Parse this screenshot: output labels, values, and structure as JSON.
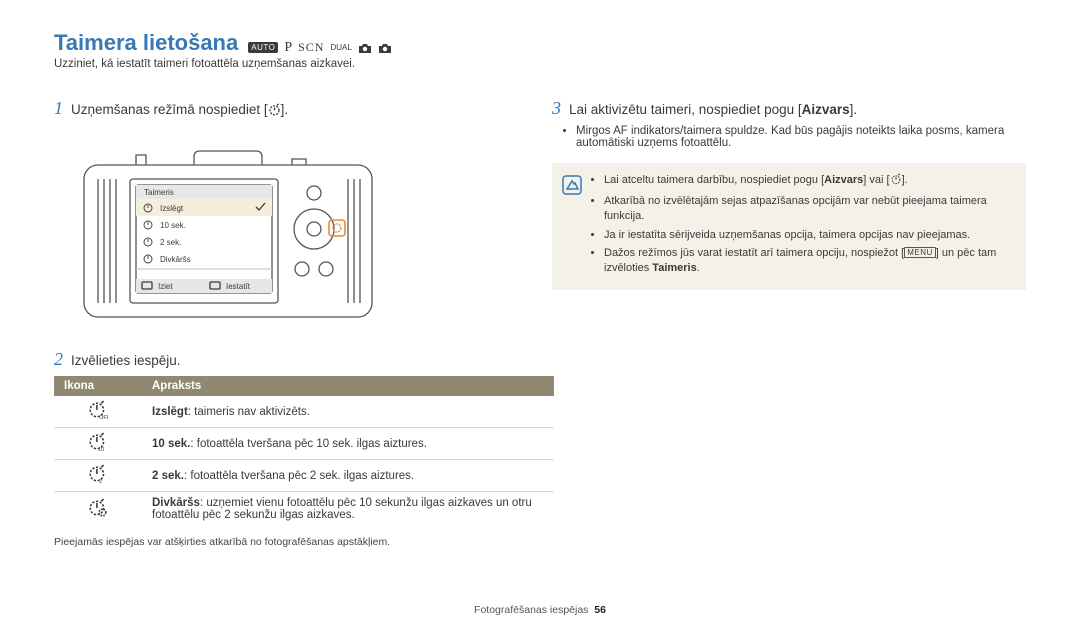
{
  "title": "Taimera lietošana",
  "title_color": "#3878b5",
  "modes": {
    "auto": "AUTO",
    "p": "P",
    "scn": "SCN",
    "dual": "DUAL"
  },
  "intro": "Uzziniet, kā iestatīt taimeri fotoattēla uzņemšanas aizkavei.",
  "step1": {
    "num": "1",
    "text_before": "Uzņemšanas režīmā nospiediet [",
    "text_after": "]."
  },
  "camera": {
    "menu_title": "Taimeris",
    "items": [
      {
        "icon": "off",
        "label": "Izslēgt",
        "checked": true
      },
      {
        "icon": "10",
        "label": "10 sek."
      },
      {
        "icon": "2",
        "label": "2 sek."
      },
      {
        "icon": "dbl",
        "label": "Divkāršs"
      }
    ],
    "exit": "Iziet",
    "set": "Iestatīt",
    "outline_color": "#555555",
    "screen_bg": "#ffffff",
    "body_bg": "#ffffff",
    "highlight_orange": "#e98a2e"
  },
  "step2": {
    "num": "2",
    "text": "Izvēlieties iespēju."
  },
  "table": {
    "headers": [
      "Ikona",
      "Apraksts"
    ],
    "header_bg": "#908871",
    "rows": [
      {
        "icon": "off",
        "bold": "Izslēgt",
        "rest": ": taimeris nav aktivizēts."
      },
      {
        "icon": "10",
        "bold": "10 sek.",
        "rest": ": fotoattēla tveršana pēc 10 sek. ilgas aiztures."
      },
      {
        "icon": "2",
        "bold": "2 sek.",
        "rest": ": fotoattēla tveršana pēc 2 sek. ilgas aiztures."
      },
      {
        "icon": "dbl",
        "bold": "Divkāršs",
        "rest": ": uzņemiet vienu fotoattēlu pēc 10 sekunžu ilgas aizkaves un otru fotoattēlu pēc 2 sekunžu ilgas aizkaves."
      }
    ]
  },
  "footnote": "Pieejamās iespējas var atšķirties atkarībā no fotografēšanas apstākļiem.",
  "step3": {
    "num": "3",
    "text_before": "Lai aktivizētu taimeri, nospiediet pogu [",
    "bold": "Aizvars",
    "text_after": "].",
    "bullets": [
      "Mirgos AF indikators/taimera spuldze. Kad būs pagājis noteikts laika posms, kamera automātiski uzņems fotoattēlu."
    ]
  },
  "info": {
    "bg": "#f3f1e8",
    "items": [
      {
        "pre": "Lai atceltu taimera darbību, nospiediet pogu [",
        "bold": "Aizvars",
        "post_before_icon": "] vai [",
        "post_after_icon": "]."
      },
      {
        "text": "Atkarībā no izvēlētajām sejas atpazīšanas opcijām var nebūt pieejama taimera funkcija."
      },
      {
        "text": "Ja ir iestatīta sērijveida uzņemšanas opcija, taimera opcijas nav pieejamas."
      },
      {
        "pre": "Dažos režīmos jūs varat iestatīt arī taimera opciju, nospiežot [",
        "menu": "MENU",
        "post": "] un pēc tam izvēloties ",
        "bold2": "Taimeris",
        "post2": "."
      }
    ]
  },
  "footer": {
    "section": "Fotografēšanas iespējas",
    "page": "56"
  }
}
